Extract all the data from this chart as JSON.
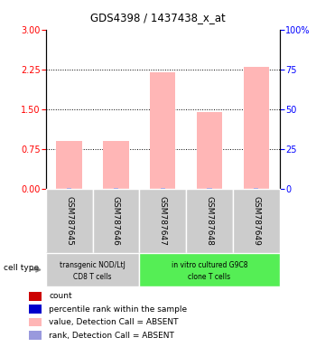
{
  "title": "GDS4398 / 1437438_x_at",
  "samples": [
    "GSM787645",
    "GSM787646",
    "GSM787647",
    "GSM787648",
    "GSM787649"
  ],
  "bar_values": [
    0.9,
    0.9,
    2.2,
    1.45,
    2.3
  ],
  "rank_values": [
    0.025,
    0.025,
    0.03,
    0.02,
    0.03
  ],
  "ylim_left": [
    0,
    3
  ],
  "ylim_right": [
    0,
    100
  ],
  "yticks_left": [
    0,
    0.75,
    1.5,
    2.25,
    3
  ],
  "yticks_right": [
    0,
    25,
    50,
    75,
    100
  ],
  "bar_color": "#ffb6b6",
  "rank_color": "#9999dd",
  "count_color": "#cc0000",
  "percentile_color": "#0000cc",
  "group1_label_line1": "transgenic NOD/LtJ",
  "group1_label_line2": "CD8 T cells",
  "group2_label_line1": "in vitro cultured G9C8",
  "group2_label_line2": "clone T cells",
  "group1_indices": [
    0,
    1
  ],
  "group2_indices": [
    2,
    3,
    4
  ],
  "group1_bg": "#cccccc",
  "group2_bg": "#55ee55",
  "sample_bg": "#cccccc",
  "cell_type_label": "cell type",
  "legend_items": [
    {
      "label": "count",
      "color": "#cc0000"
    },
    {
      "label": "percentile rank within the sample",
      "color": "#0000cc"
    },
    {
      "label": "value, Detection Call = ABSENT",
      "color": "#ffb6b6"
    },
    {
      "label": "rank, Detection Call = ABSENT",
      "color": "#9999dd"
    }
  ]
}
